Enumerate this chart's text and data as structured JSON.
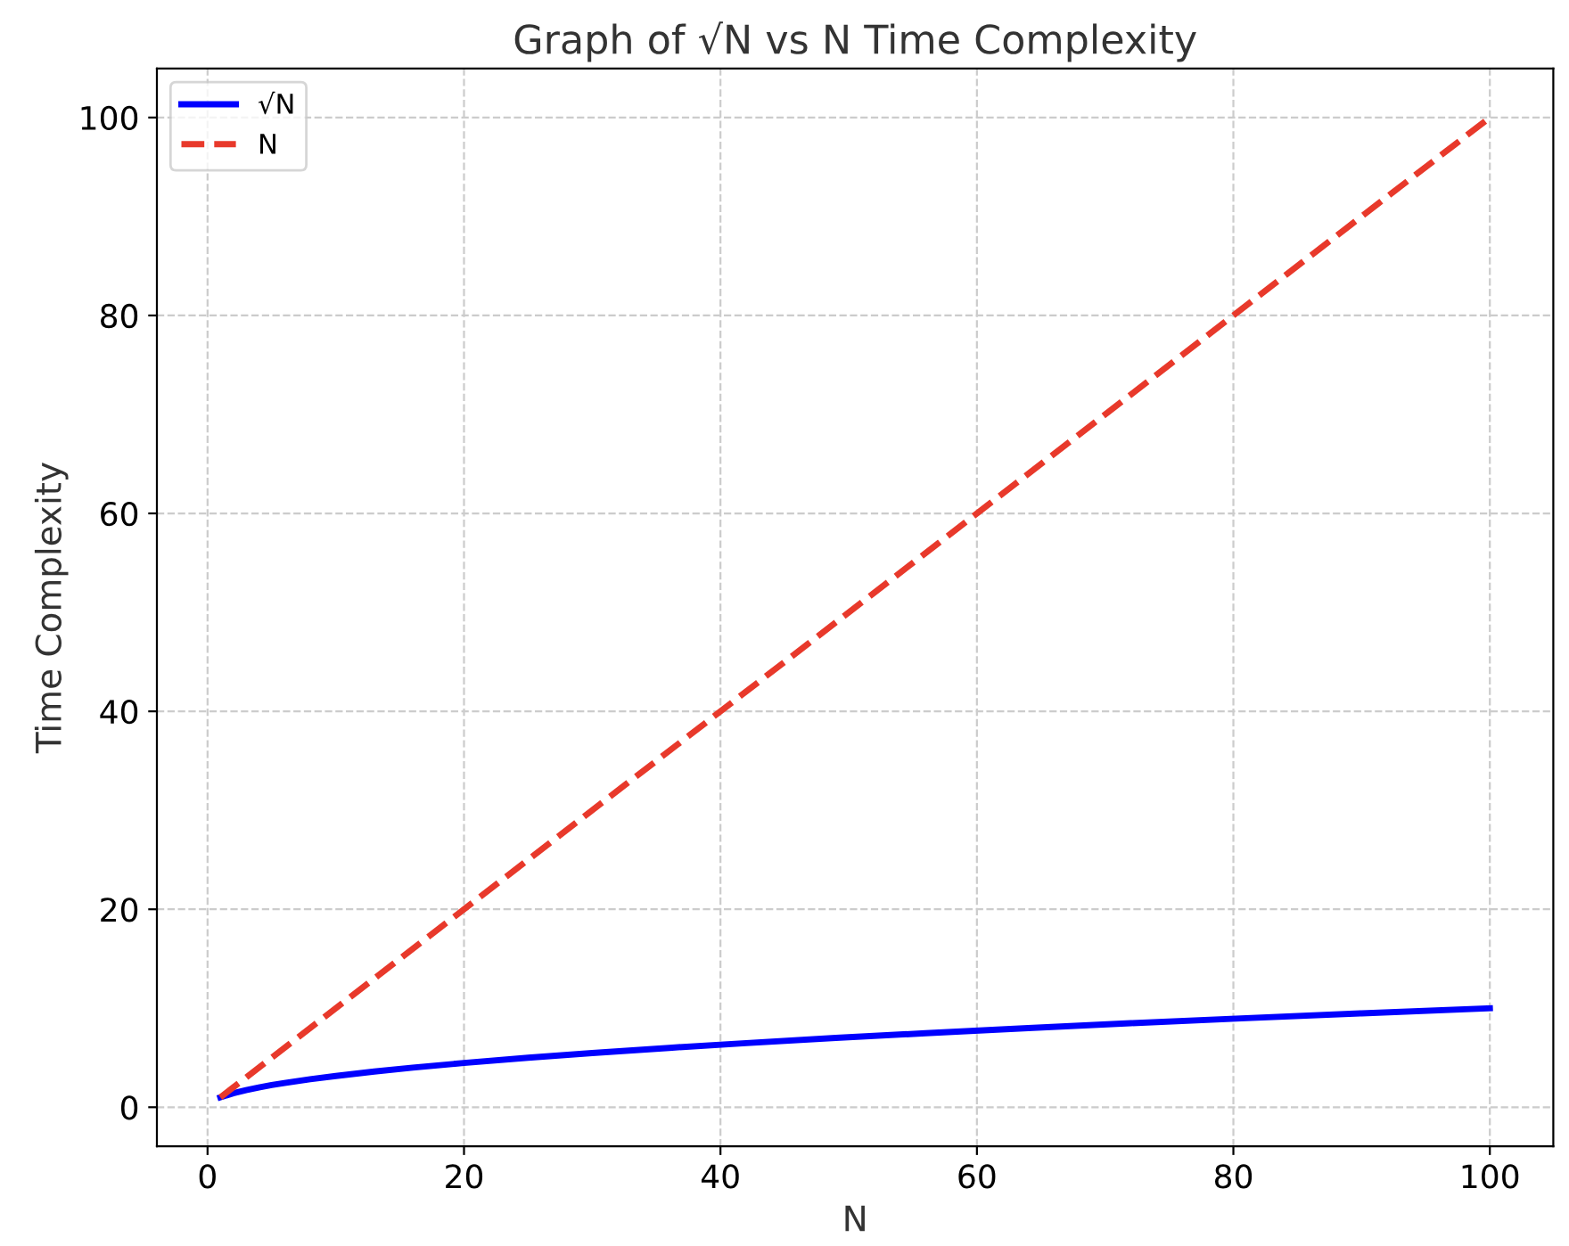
{
  "chart_data": {
    "type": "line",
    "title": "Graph of √N vs N Time Complexity",
    "xlabel": "N",
    "ylabel": "Time Complexity",
    "xlim": [
      -3.95,
      104.95
    ],
    "ylim": [
      -3.95,
      104.95
    ],
    "xticks": [
      0,
      20,
      40,
      60,
      80,
      100
    ],
    "yticks": [
      0,
      20,
      40,
      60,
      80,
      100
    ],
    "grid": true,
    "legend": "top left",
    "marker": "none",
    "series": [
      {
        "name": "√N",
        "color": "#0000ff",
        "line_style": "solid",
        "x": [
          1,
          2,
          3,
          4,
          5,
          6,
          8,
          10,
          13,
          16,
          20,
          25,
          30,
          36,
          42,
          49,
          56,
          64,
          72,
          81,
          90,
          100
        ],
        "values": [
          1.0,
          1.41,
          1.73,
          2.0,
          2.24,
          2.45,
          2.83,
          3.16,
          3.61,
          4.0,
          4.47,
          5.0,
          5.48,
          6.0,
          6.48,
          7.0,
          7.48,
          8.0,
          8.49,
          9.0,
          9.49,
          10.0
        ]
      },
      {
        "name": "N",
        "color": "#e8392b",
        "line_style": "dashed",
        "x": [
          1,
          100
        ],
        "values": [
          1,
          100
        ]
      }
    ]
  }
}
